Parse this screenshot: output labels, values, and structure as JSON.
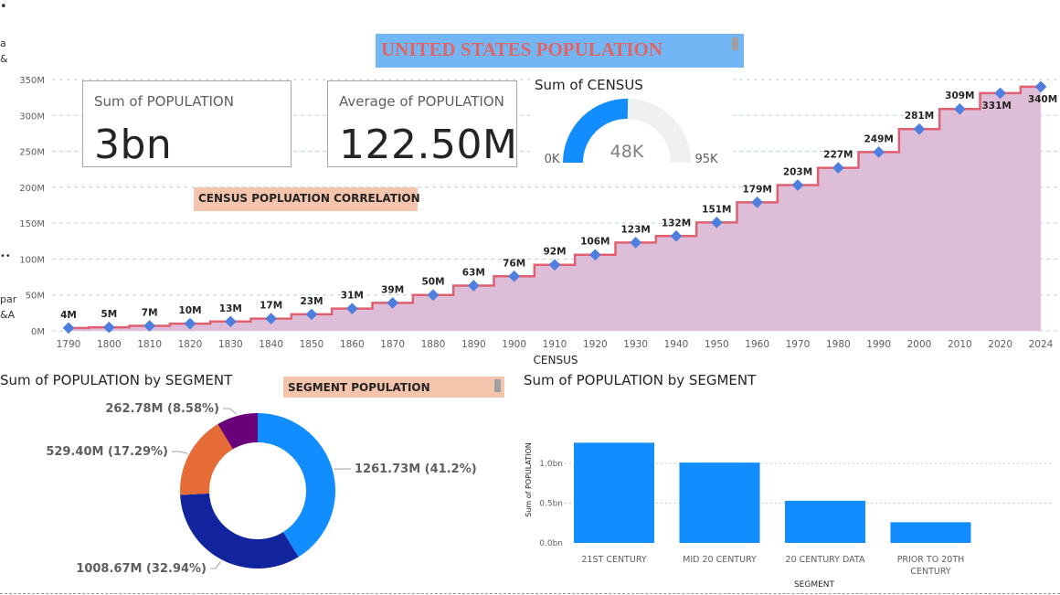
{
  "title": "UNITED STATES POPULATION",
  "cards": {
    "sum_population": {
      "label": "Sum of POPULATION",
      "value": "3bn"
    },
    "avg_population": {
      "label": "Average of POPULATION",
      "value": "122.50M"
    }
  },
  "gauge": {
    "title": "Sum of CENSUS",
    "min_label": "0K",
    "max_label": "95K",
    "value_label": "48K",
    "min": 0,
    "max": 95,
    "value": 48,
    "fill_color": "#118dff",
    "track_color": "#f0f0f0"
  },
  "labels": {
    "correlation": "CENSUS  POPLUATION CORRELATION",
    "segment_population": "SEGMENT POPULATION"
  },
  "edge_fragments": [
    "a",
    "&",
    "par",
    "&A"
  ],
  "colors": {
    "line": "#e06070",
    "area": "#ddbdd8",
    "marker": "#4f7fde",
    "bar": "#118dff",
    "donut": [
      "#118dff",
      "#12239e",
      "#e66c37",
      "#6b007b"
    ]
  },
  "chart_data": [
    {
      "type": "area",
      "xlabel": "CENSUS",
      "ylabel": "",
      "ylim": [
        0,
        350
      ],
      "y_unit": "M",
      "y_ticks": [
        "0M",
        "50M",
        "100M",
        "150M",
        "200M",
        "250M",
        "300M",
        "350M"
      ],
      "x": [
        "1790",
        "1800",
        "1810",
        "1820",
        "1830",
        "1840",
        "1850",
        "1860",
        "1870",
        "1880",
        "1890",
        "1900",
        "1910",
        "1920",
        "1930",
        "1940",
        "1950",
        "1960",
        "1970",
        "1980",
        "1990",
        "2000",
        "2010",
        "2020",
        "2024"
      ],
      "values": [
        4,
        5,
        7,
        10,
        13,
        17,
        23,
        31,
        39,
        50,
        63,
        76,
        92,
        106,
        123,
        132,
        151,
        179,
        203,
        227,
        249,
        281,
        309,
        331,
        340
      ],
      "data_labels": [
        "4M",
        "5M",
        "7M",
        "10M",
        "13M",
        "17M",
        "23M",
        "31M",
        "39M",
        "50M",
        "63M",
        "76M",
        "92M",
        "106M",
        "123M",
        "132M",
        "151M",
        "179M",
        "203M",
        "227M",
        "249M",
        "281M",
        "309M",
        "331M",
        "340M"
      ],
      "grid": true,
      "step": true
    },
    {
      "type": "pie",
      "title": "Sum of POPULATION by SEGMENT",
      "donut": true,
      "values": [
        1261.73,
        1008.67,
        529.4,
        262.78
      ],
      "data_labels": [
        "1261.73M (41.2%)",
        "1008.67M (32.94%)",
        "529.40M (17.29%)",
        "262.78M (8.58%)"
      ]
    },
    {
      "type": "bar",
      "title": "Sum of POPULATION by SEGMENT",
      "xlabel": "SEGMENT",
      "ylabel": "Sum of POPULATION",
      "categories": [
        "21ST CENTURY",
        "MID 20 CENTURY",
        "20 CENTURY DATA",
        "PRIOR TO 20TH CENTURY"
      ],
      "values": [
        1.26,
        1.01,
        0.53,
        0.26
      ],
      "y_unit": "bn",
      "ylim": [
        0,
        1.3
      ],
      "y_ticks": [
        "0.0bn",
        "0.5bn",
        "1.0bn"
      ],
      "grid": true
    }
  ]
}
